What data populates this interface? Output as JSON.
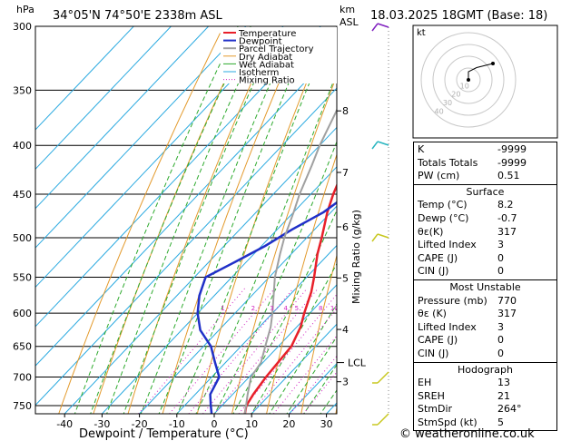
{
  "header": {
    "hpa": "hPa",
    "location": "34°05'N  74°50'E  2338m  ASL",
    "km": "km",
    "asl": "ASL",
    "datetime": "18.03.2025  18GMT  (Base: 18)"
  },
  "footer": {
    "copyright": "© weatheronline.co.uk"
  },
  "hodograph": {
    "label": "kt",
    "ring_labels": [
      "10",
      "20",
      "30",
      "40"
    ],
    "trace": [
      [
        0,
        0
      ],
      [
        0,
        2
      ],
      [
        2,
        3
      ],
      [
        6,
        4
      ]
    ]
  },
  "chart_data": {
    "type": "line",
    "title": "34°05'N  74°50'E  2338m  ASL",
    "xlabel": "Dewpoint / Temperature (°C)",
    "ylabel": "hPa",
    "xlim": [
      -48,
      32
    ],
    "ylim": [
      765,
      300
    ],
    "y_log": true,
    "skew": true,
    "x_ticks": [
      -40,
      -30,
      -20,
      -10,
      0,
      10,
      20,
      30
    ],
    "p_ticks": [
      300,
      350,
      400,
      450,
      500,
      550,
      600,
      650,
      700,
      750
    ],
    "km_ticks": [
      {
        "km": "8",
        "p": 368
      },
      {
        "km": "7",
        "p": 427
      },
      {
        "km": "6",
        "p": 487
      },
      {
        "km": "5",
        "p": 551
      },
      {
        "km": "4",
        "p": 624
      },
      {
        "km": "3",
        "p": 708
      }
    ],
    "lcl": {
      "label": "LCL",
      "p": 676
    },
    "mixing_ratio_label": "Mixing Ratio (g/kg)",
    "mixing_ratios": [
      "1",
      "2",
      "3",
      "4",
      "5",
      "8",
      "10",
      "15",
      "20",
      "25"
    ],
    "legend": [
      "Temperature",
      "Dewpoint",
      "Parcel Trajectory",
      "Dry Adiabat",
      "Wet Adiabat",
      "Isotherm",
      "Mixing Ratio"
    ],
    "series": [
      {
        "name": "Temperature",
        "color": "#e8202a",
        "points": [
          [
            8.2,
            765
          ],
          [
            6.5,
            750
          ],
          [
            5.5,
            730
          ],
          [
            4.5,
            700
          ],
          [
            4,
            675
          ],
          [
            3.5,
            650
          ],
          [
            1,
            620
          ],
          [
            -1.5,
            600
          ],
          [
            -5,
            570
          ],
          [
            -8,
            550
          ],
          [
            -13,
            520
          ],
          [
            -16,
            500
          ],
          [
            -21,
            470
          ],
          [
            -24,
            450
          ],
          [
            -28,
            420
          ],
          [
            -31,
            400
          ],
          [
            -36,
            370
          ],
          [
            -40,
            350
          ],
          [
            -45,
            320
          ],
          [
            -49,
            300
          ]
        ]
      },
      {
        "name": "Dewpoint",
        "color": "#2030c8",
        "points": [
          [
            -0.7,
            765
          ],
          [
            -3,
            750
          ],
          [
            -6,
            730
          ],
          [
            -8,
            700
          ],
          [
            -13,
            675
          ],
          [
            -18,
            650
          ],
          [
            -25,
            625
          ],
          [
            -30,
            600
          ],
          [
            -34,
            575
          ],
          [
            -37,
            550
          ],
          [
            -33,
            530
          ],
          [
            -29,
            510
          ],
          [
            -26,
            490
          ],
          [
            -22,
            470
          ],
          [
            -20,
            450
          ],
          [
            -21,
            430
          ],
          [
            -22,
            400
          ],
          [
            -26,
            370
          ],
          [
            -29,
            350
          ],
          [
            -34,
            320
          ],
          [
            -38,
            300
          ]
        ]
      },
      {
        "name": "Parcel Trajectory",
        "color": "#a0a0a0",
        "points": [
          [
            8.2,
            765
          ],
          [
            4,
            730
          ],
          [
            0.5,
            700
          ],
          [
            -0.5,
            676
          ],
          [
            -3.5,
            650
          ],
          [
            -7,
            620
          ],
          [
            -10,
            600
          ],
          [
            -15,
            570
          ],
          [
            -18.5,
            550
          ],
          [
            -23,
            520
          ],
          [
            -26,
            500
          ],
          [
            -30,
            470
          ],
          [
            -33,
            450
          ],
          [
            -37,
            420
          ],
          [
            -40,
            400
          ],
          [
            -44,
            370
          ],
          [
            -47,
            350
          ],
          [
            -51,
            320
          ],
          [
            -54,
            300
          ]
        ]
      }
    ]
  },
  "indices": {
    "rows": [
      {
        "label": "K",
        "value": "-9999"
      },
      {
        "label": "Totals Totals",
        "value": "-9999"
      },
      {
        "label": "PW (cm)",
        "value": "0.51"
      }
    ],
    "surface": {
      "title": "Surface",
      "rows": [
        {
          "label": "Temp (°C)",
          "value": "8.2"
        },
        {
          "label": "Dewp (°C)",
          "value": "-0.7"
        },
        {
          "label": "θε(K)",
          "value": "317"
        },
        {
          "label": "Lifted Index",
          "value": "3"
        },
        {
          "label": "CAPE (J)",
          "value": "0"
        },
        {
          "label": "CIN (J)",
          "value": "0"
        }
      ]
    },
    "unstable": {
      "title": "Most Unstable",
      "rows": [
        {
          "label": "Pressure (mb)",
          "value": "770"
        },
        {
          "label": "θε (K)",
          "value": "317"
        },
        {
          "label": "Lifted Index",
          "value": "3"
        },
        {
          "label": "CAPE (J)",
          "value": "0"
        },
        {
          "label": "CIN (J)",
          "value": "0"
        }
      ]
    },
    "hodograph": {
      "title": "Hodograph",
      "rows": [
        {
          "label": "EH",
          "value": "13"
        },
        {
          "label": "SREH",
          "value": "21"
        },
        {
          "label": "StmDir",
          "value": "264°"
        },
        {
          "label": "StmSpd (kt)",
          "value": "5"
        }
      ]
    }
  }
}
